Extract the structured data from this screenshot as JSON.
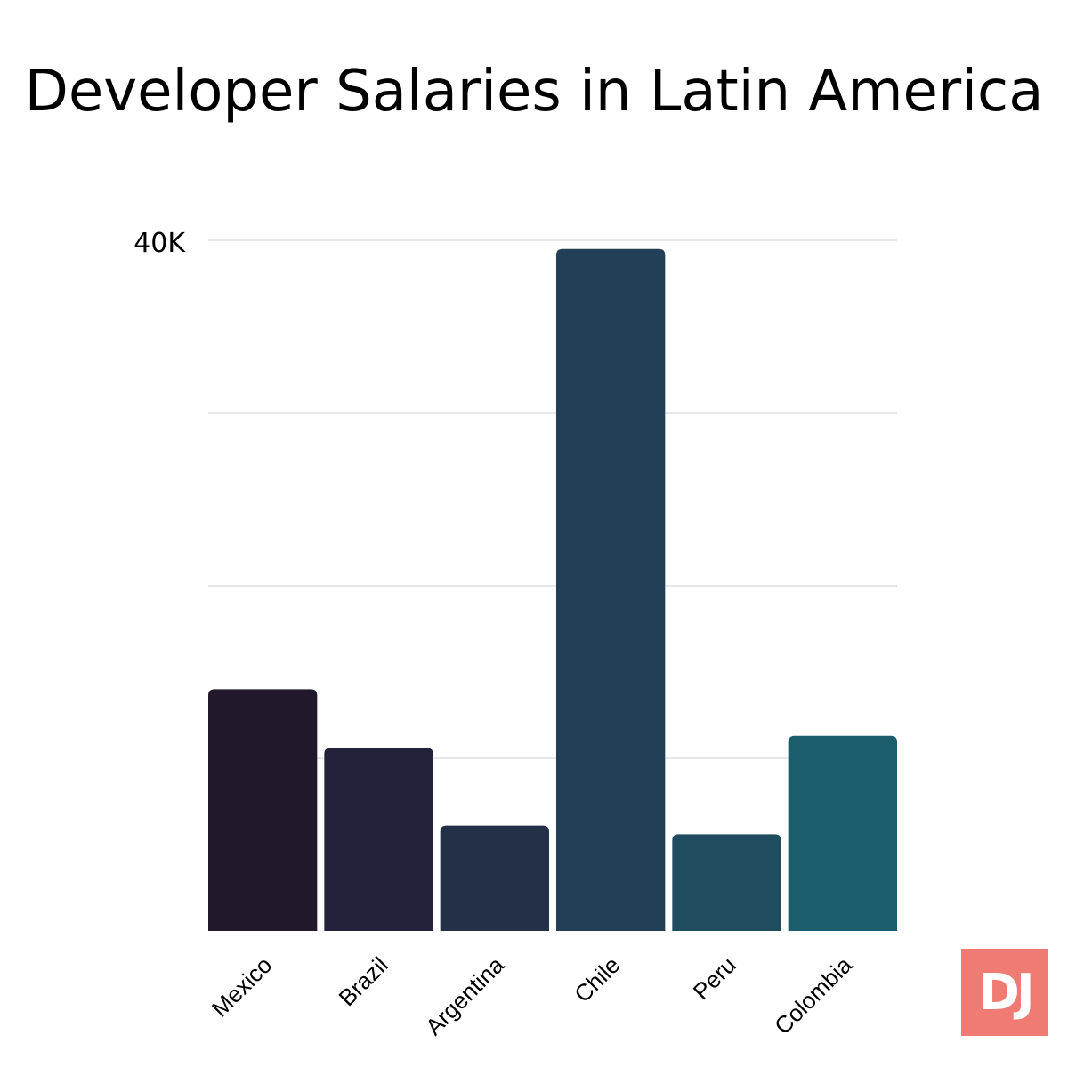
{
  "chart_data": {
    "type": "bar",
    "title": "Developer Salaries in Latin America",
    "categories": [
      "Mexico",
      "Brazil",
      "Argentina",
      "Chile",
      "Peru",
      "Colombia"
    ],
    "values": [
      14000,
      10600,
      6100,
      39500,
      5600,
      11300
    ],
    "ylim": [
      0,
      40000
    ],
    "yticks": [
      0,
      10000,
      20000,
      30000,
      40000
    ],
    "ytick_labels": [
      "",
      "",
      "",
      "",
      "40K"
    ],
    "xlabel": "",
    "ylabel": "",
    "grid": true,
    "legend": "none",
    "colors": [
      "#21192b",
      "#23223a",
      "#233047",
      "#223f57",
      "#1f4c5f",
      "#1b5d6c"
    ]
  },
  "logo": {
    "text": "DJ",
    "color": "#f07b72"
  }
}
